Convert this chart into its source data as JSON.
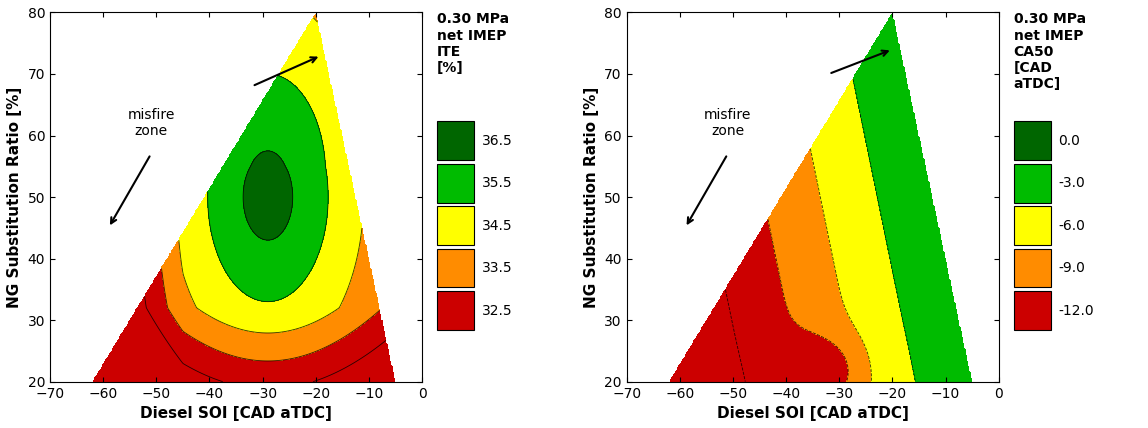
{
  "xlim": [
    -70,
    0
  ],
  "ylim": [
    20,
    80
  ],
  "xticks": [
    -70,
    -60,
    -50,
    -40,
    -30,
    -20,
    -10,
    0
  ],
  "yticks": [
    20,
    30,
    40,
    50,
    60,
    70,
    80
  ],
  "xlabel": "Diesel SOI [CAD aTDC]",
  "ylabel": "NG Substitution Ratio [%]",
  "plot1_title": "0.30 MPa\nnet IMEP\nITE\n[%]",
  "plot1_levels": [
    32.5,
    33.5,
    34.5,
    35.5,
    36.5,
    37.5
  ],
  "plot1_colors": [
    "#cc0000",
    "#ff8c00",
    "#ffff00",
    "#00bb00",
    "#006600",
    "#0000dd"
  ],
  "plot1_labels": [
    "32.5",
    "33.5",
    "34.5",
    "35.5",
    "36.5"
  ],
  "plot2_title": "0.30 MPa\nnet IMEP\nCA50\n[CAD\naTDC]",
  "plot2_levels": [
    -12.0,
    -9.0,
    -6.0,
    -3.0,
    0.0,
    3.0
  ],
  "plot2_colors": [
    "#cc0000",
    "#ff8c00",
    "#ffff00",
    "#00bb00",
    "#006600",
    "#0000dd"
  ],
  "plot2_labels": [
    "-12.0",
    "-9.0",
    "-6.0",
    "-3.0",
    "0.0"
  ]
}
